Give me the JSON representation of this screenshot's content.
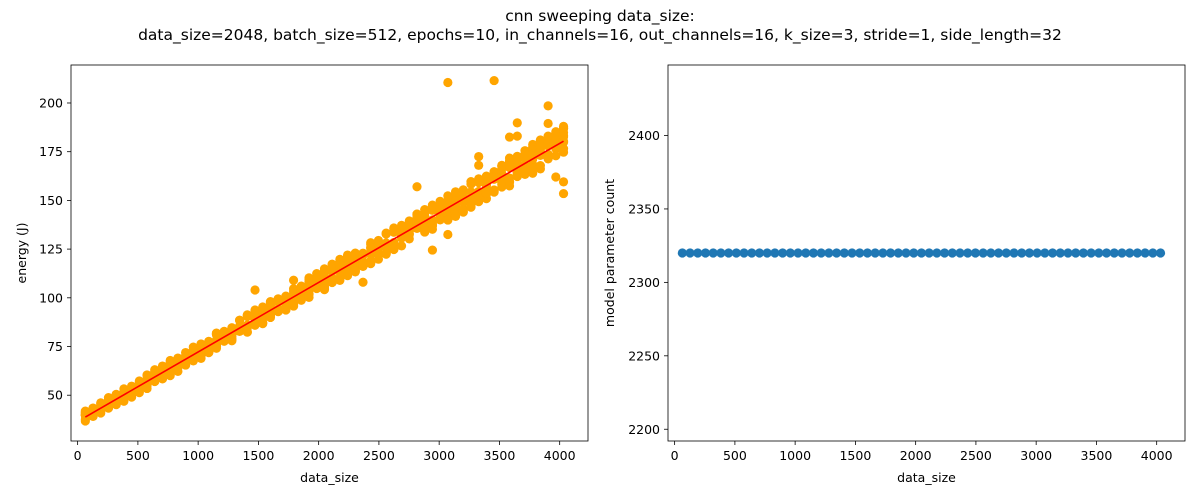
{
  "title_line1": "cnn sweeping data_size:",
  "title_line2": "data_size=2048, batch_size=512, epochs=10, in_channels=16, out_channels=16, k_size=3, stride=1, side_length=32",
  "colors": {
    "energy_points": "#ffa500",
    "fit_line": "#ff0000",
    "param_points": "#1f77b4"
  },
  "chart_data": [
    {
      "type": "scatter",
      "title": "",
      "xlabel": "data_size",
      "ylabel": "energy (J)",
      "xlim": [
        -55,
        4235
      ],
      "ylim": [
        26.5,
        219.5
      ],
      "xticks": [
        0,
        500,
        1000,
        1500,
        2000,
        2500,
        3000,
        3500,
        4000
      ],
      "yticks": [
        50,
        75,
        100,
        125,
        150,
        175,
        200
      ],
      "x_min": 64,
      "x_max": 4032,
      "x_step": 64,
      "trend": {
        "intercept": 36.5,
        "slope": 0.0357
      },
      "fit_line": {
        "x": [
          64,
          4032
        ],
        "y": [
          38.8,
          180.4
        ]
      },
      "outliers": [
        {
          "x": 3072,
          "y": 210.5
        },
        {
          "x": 3456,
          "y": 211.5
        },
        {
          "x": 3904,
          "y": 198.5
        },
        {
          "x": 3904,
          "y": 189.5
        },
        {
          "x": 3648,
          "y": 189.8
        },
        {
          "x": 3072,
          "y": 132.5
        },
        {
          "x": 2944,
          "y": 124.5
        },
        {
          "x": 2816,
          "y": 157
        },
        {
          "x": 4032,
          "y": 153.5
        },
        {
          "x": 4032,
          "y": 159.5
        },
        {
          "x": 3968,
          "y": 162
        },
        {
          "x": 3328,
          "y": 172.5
        },
        {
          "x": 3328,
          "y": 168
        },
        {
          "x": 2368,
          "y": 108
        },
        {
          "x": 1472,
          "y": 104
        },
        {
          "x": 1792,
          "y": 109
        },
        {
          "x": 3584,
          "y": 182.5
        },
        {
          "x": 3648,
          "y": 183
        }
      ]
    },
    {
      "type": "scatter",
      "title": "",
      "xlabel": "data_size",
      "ylabel": "model parameter count",
      "xlim": [
        -55,
        4235
      ],
      "ylim": [
        2192,
        2448
      ],
      "xticks": [
        0,
        500,
        1000,
        1500,
        2000,
        2500,
        3000,
        3500,
        4000
      ],
      "yticks": [
        2200,
        2250,
        2300,
        2350,
        2400
      ],
      "x_min": 64,
      "x_max": 4032,
      "x_step": 64,
      "constant_y": 2320
    }
  ]
}
